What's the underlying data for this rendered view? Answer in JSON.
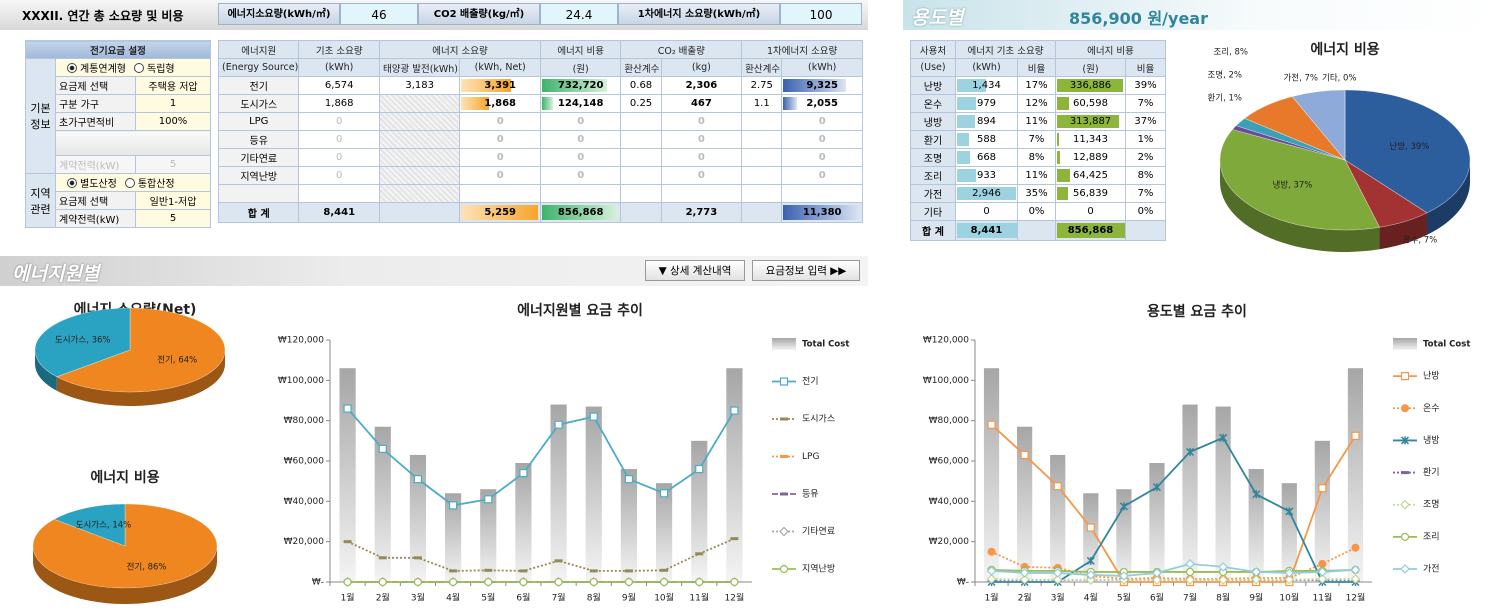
{
  "header": {
    "title": "XXXII. 연간 총 소요량 및 비용",
    "metrics": [
      {
        "label": "에너지소요량(kWh/㎡)",
        "value": "46"
      },
      {
        "label": "CO2 배출량(kg/㎡)",
        "value": "24.4"
      },
      {
        "label": "1차에너지 소요량(kWh/㎡)",
        "value": "100"
      }
    ]
  },
  "usage_header": {
    "title": "용도별",
    "total": "856,900 원/year"
  },
  "settings": {
    "title": "전기요금 설정",
    "groups": [
      {
        "label": "기본 정보",
        "options": [
          "계통연계형",
          "독립형"
        ],
        "rows": [
          [
            "요금제 선택",
            "주택용 저압"
          ],
          [
            "구분 가구",
            "1"
          ],
          [
            "초가구면적비",
            "100%"
          ],
          [
            "계약전력(kW)",
            "5"
          ]
        ]
      },
      {
        "label": "지역 관련",
        "options": [
          "별도산정",
          "통합산정"
        ],
        "rows": [
          [
            "요금제 선택",
            "일반1-저압"
          ],
          [
            "계약전력(kW)",
            "5"
          ]
        ]
      }
    ]
  },
  "source_table": {
    "head": [
      "에너지원",
      "기초 소요량",
      "에너지 소요량",
      "에너지 비용",
      "CO₂ 배출량",
      "1차에너지 소요량"
    ],
    "subhead": [
      "(Energy Source)",
      "(kWh)",
      "태양광 발전(kWh)",
      "(kWh, Net)",
      "(원)",
      "환산계수",
      "(kg)",
      "환산계수",
      "(kWh)"
    ],
    "rows": [
      [
        "전기",
        "6,574",
        "3,183",
        "3,391",
        "732,720",
        "0.68",
        "2,306",
        "2.75",
        "9,325"
      ],
      [
        "도시가스",
        "1,868",
        null,
        "1,868",
        "124,148",
        "0.25",
        "467",
        "1.1",
        "2,055"
      ],
      [
        "LPG",
        "0",
        null,
        "0",
        "0",
        null,
        "0",
        null,
        "0"
      ],
      [
        "등유",
        "0",
        null,
        "0",
        "0",
        null,
        "0",
        null,
        "0"
      ],
      [
        "기타연료",
        "0",
        null,
        "0",
        "0",
        null,
        "0",
        null,
        "0"
      ],
      [
        "지역난방",
        "0",
        null,
        "0",
        "0",
        null,
        "0",
        null,
        "0"
      ],
      [
        "합 계",
        "8,441",
        null,
        "5,259",
        "856,868",
        null,
        "2,773",
        null,
        "11,380"
      ]
    ]
  },
  "usage_table": {
    "head": [
      "사용처",
      "에너지 기초 소요량",
      "에너지 비용"
    ],
    "subhead": [
      "(Use)",
      "(kWh)",
      "비율",
      "(원)",
      "비율"
    ],
    "rows": [
      [
        "난방",
        "1,434",
        "17%",
        "336,886",
        "39%"
      ],
      [
        "온수",
        "979",
        "12%",
        "60,598",
        "7%"
      ],
      [
        "냉방",
        "894",
        "11%",
        "313,887",
        "37%"
      ],
      [
        "환기",
        "588",
        "7%",
        "11,343",
        "1%"
      ],
      [
        "조명",
        "668",
        "8%",
        "12,889",
        "2%"
      ],
      [
        "조리",
        "933",
        "11%",
        "64,425",
        "8%"
      ],
      [
        "가전",
        "2,946",
        "35%",
        "56,839",
        "7%"
      ],
      [
        "기타",
        "0",
        "0%",
        "0",
        "0%"
      ],
      [
        "합 계",
        "8,441",
        null,
        "856,868",
        null
      ]
    ]
  },
  "section_label": "에너지원별",
  "buttons": [
    "▼ 상세 계산내역",
    "요금정보 입력 ▶▶"
  ],
  "chart_data": [
    {
      "type": "pie",
      "title": "에너지 소요량(Net)",
      "values": [
        64,
        36
      ],
      "value_labels": [
        "전기, 64%",
        "도시가스, 36%"
      ],
      "colors": [
        "#f0861f",
        "#2aa3c2"
      ]
    },
    {
      "type": "pie",
      "title": "에너지 비용",
      "values": [
        86,
        14
      ],
      "value_labels": [
        "전기, 86%",
        "도시가스, 14%"
      ],
      "colors": [
        "#f0861f",
        "#2aa3c2"
      ]
    },
    {
      "type": "line",
      "title": "에너지원별 요금 추이",
      "categories": [
        "1월",
        "2월",
        "3월",
        "4월",
        "5월",
        "6월",
        "7월",
        "8월",
        "9월",
        "10월",
        "11월",
        "12월"
      ],
      "ylim": [
        0,
        120000
      ],
      "yticks": [
        {
          "value": 0,
          "label": "₩-"
        },
        {
          "value": 20000,
          "label": "₩20,000"
        },
        {
          "value": 40000,
          "label": "₩40,000"
        },
        {
          "value": 60000,
          "label": "₩60,000"
        },
        {
          "value": 80000,
          "label": "₩80,000"
        },
        {
          "value": 100000,
          "label": "₩100,000"
        },
        {
          "value": 120000,
          "label": "₩120,000"
        }
      ],
      "series": [
        {
          "name": "Total Cost",
          "type": "bar",
          "color": "#a6a6a6",
          "values": [
            106000,
            77000,
            63000,
            44000,
            46000,
            59000,
            88000,
            87000,
            56000,
            49000,
            70000,
            106000
          ]
        },
        {
          "name": "전기",
          "color": "#4bacc6",
          "marker": "square",
          "values": [
            86000,
            66000,
            51000,
            38000,
            41000,
            54000,
            78000,
            82000,
            51000,
            44000,
            56000,
            85000
          ]
        },
        {
          "name": "도시가스",
          "color": "#948a54",
          "marker": "dash",
          "dash": "dotted",
          "values": [
            20000,
            12000,
            12000,
            5500,
            5800,
            5500,
            10500,
            5500,
            5500,
            5800,
            14000,
            21500
          ]
        },
        {
          "name": "LPG",
          "color": "#f79646",
          "marker": "dash",
          "dash": "dotted",
          "values": [
            0,
            0,
            0,
            0,
            0,
            0,
            0,
            0,
            0,
            0,
            0,
            0
          ]
        },
        {
          "name": "등유",
          "color": "#8064a2",
          "marker": "dash",
          "dash": "dashed",
          "values": [
            0,
            0,
            0,
            0,
            0,
            0,
            0,
            0,
            0,
            0,
            0,
            0
          ]
        },
        {
          "name": "기타연료",
          "color": "#a6a6a6",
          "marker": "diamond",
          "dash": "dotted",
          "values": [
            0,
            0,
            0,
            0,
            0,
            0,
            0,
            0,
            0,
            0,
            0,
            0
          ]
        },
        {
          "name": "지역난방",
          "color": "#9bbb59",
          "marker": "circle",
          "values": [
            0,
            0,
            0,
            0,
            0,
            0,
            0,
            0,
            0,
            0,
            0,
            0
          ]
        }
      ]
    },
    {
      "type": "pie",
      "title": "에너지 비용",
      "values": [
        39,
        7,
        37,
        1,
        2,
        8,
        7,
        0
      ],
      "value_labels": [
        "난방, 39%",
        "온수, 7%",
        "냉방, 37%",
        "환기, 1%",
        "조명, 2%",
        "조리, 8%",
        "가전, 7%",
        "기타, 0%"
      ],
      "colors": [
        "#2c5d9c",
        "#a33232",
        "#7fa93a",
        "#6b4a9b",
        "#3aa0b8",
        "#e8792a",
        "#8eaad8",
        "#d99694"
      ]
    },
    {
      "type": "line",
      "title": "용도별 요금 추이",
      "categories": [
        "1월",
        "2월",
        "3월",
        "4월",
        "5월",
        "6월",
        "7월",
        "8월",
        "9월",
        "10월",
        "11월",
        "12월"
      ],
      "ylim": [
        0,
        120000
      ],
      "yticks": [
        {
          "value": 0,
          "label": "₩-"
        },
        {
          "value": 20000,
          "label": "₩20,000"
        },
        {
          "value": 40000,
          "label": "₩40,000"
        },
        {
          "value": 60000,
          "label": "₩60,000"
        },
        {
          "value": 80000,
          "label": "₩80,000"
        },
        {
          "value": 100000,
          "label": "₩100,000"
        },
        {
          "value": 120000,
          "label": "₩120,000"
        }
      ],
      "series": [
        {
          "name": "Total Cost",
          "type": "bar",
          "color": "#a6a6a6",
          "values": [
            106000,
            77000,
            63000,
            44000,
            46000,
            59000,
            88000,
            87000,
            56000,
            49000,
            70000,
            106000
          ]
        },
        {
          "name": "난방",
          "color": "#f79646",
          "marker": "square",
          "values": [
            78000,
            63000,
            47500,
            27000,
            0,
            0,
            0,
            0,
            0,
            0,
            46500,
            72500
          ]
        },
        {
          "name": "온수",
          "color": "#f79646",
          "marker": "dot",
          "dash": "dotted",
          "values": [
            15000,
            7500,
            7000,
            3000,
            1500,
            2000,
            1500,
            1500,
            2000,
            2000,
            9000,
            17000
          ]
        },
        {
          "name": "냉방",
          "color": "#31859c",
          "marker": "x",
          "values": [
            0,
            0,
            0,
            10500,
            37500,
            47000,
            64500,
            71500,
            43500,
            35000,
            0,
            0
          ]
        },
        {
          "name": "환기",
          "color": "#8064a2",
          "marker": "dash",
          "dash": "dotted",
          "values": [
            1000,
            1000,
            1000,
            1000,
            1000,
            1000,
            1000,
            1000,
            1000,
            1000,
            1000,
            1000
          ]
        },
        {
          "name": "조명",
          "color": "#c3d69b",
          "marker": "diamond",
          "dash": "dotted",
          "values": [
            1500,
            1200,
            1200,
            1000,
            1000,
            1000,
            1000,
            1000,
            1200,
            1200,
            1500,
            1500
          ]
        },
        {
          "name": "조리",
          "color": "#9bbb59",
          "marker": "circle",
          "values": [
            6000,
            5500,
            5500,
            5000,
            5000,
            5000,
            5000,
            5000,
            5000,
            5500,
            5500,
            6000
          ]
        },
        {
          "name": "가전",
          "color": "#93cddd",
          "marker": "diamond",
          "values": [
            5500,
            4500,
            4500,
            3500,
            3000,
            4500,
            9000,
            7500,
            5000,
            4500,
            5000,
            6000
          ]
        }
      ]
    }
  ]
}
